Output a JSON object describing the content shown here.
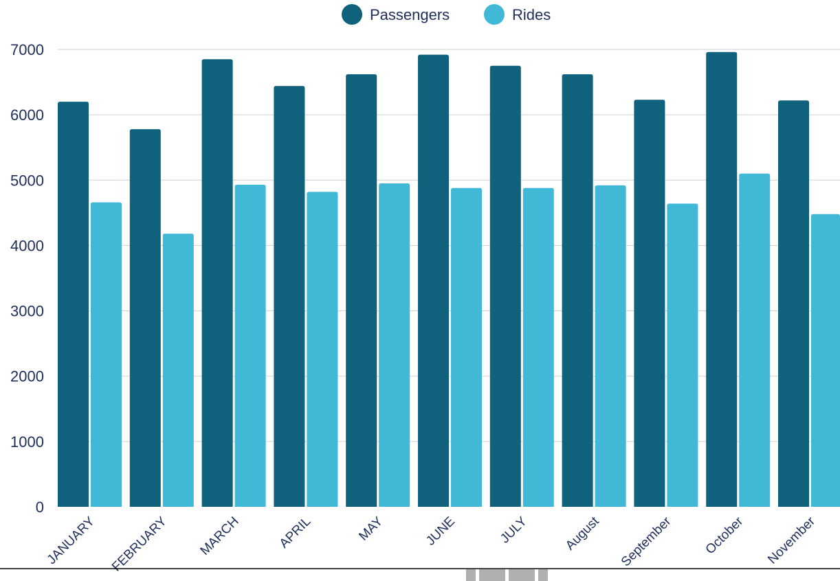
{
  "chart_data": {
    "type": "bar",
    "categories": [
      "JANUARY",
      "FEBRUARY",
      "MARCH",
      "APRIL",
      "MAY",
      "JUNE",
      "JULY",
      "August",
      "September",
      "October",
      "November"
    ],
    "series": [
      {
        "name": "Passengers",
        "color": "#10617c",
        "values": [
          6200,
          5780,
          6850,
          6440,
          6620,
          6920,
          6750,
          6620,
          6230,
          6960,
          6220
        ]
      },
      {
        "name": "Rides",
        "color": "#41b8d6",
        "values": [
          4660,
          4180,
          4930,
          4820,
          4950,
          4880,
          4880,
          4920,
          4640,
          5100,
          4480
        ]
      }
    ],
    "title": "",
    "xlabel": "",
    "ylabel": "",
    "ylim": [
      0,
      7000
    ],
    "yticks": [
      0,
      1000,
      2000,
      3000,
      4000,
      5000,
      6000,
      7000
    ],
    "grid": true,
    "legend": "top-center"
  }
}
